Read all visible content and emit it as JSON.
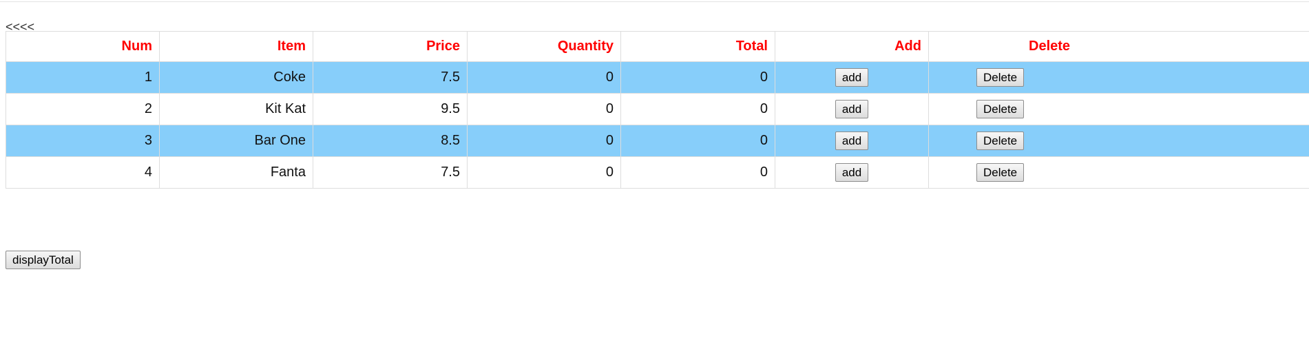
{
  "nav": {
    "back_label": "<<<<"
  },
  "table": {
    "headers": [
      "Num",
      "Item",
      "Price",
      "Quantity",
      "Total",
      "Add",
      "Delete"
    ],
    "rows": [
      {
        "num": "1",
        "item": "Coke",
        "price": "7.5",
        "quantity": "0",
        "total": "0",
        "add_label": "add",
        "delete_label": "Delete"
      },
      {
        "num": "2",
        "item": "Kit Kat",
        "price": "9.5",
        "quantity": "0",
        "total": "0",
        "add_label": "add",
        "delete_label": "Delete"
      },
      {
        "num": "3",
        "item": "Bar One",
        "price": "8.5",
        "quantity": "0",
        "total": "0",
        "add_label": "add",
        "delete_label": "Delete"
      },
      {
        "num": "4",
        "item": "Fanta",
        "price": "7.5",
        "quantity": "0",
        "total": "0",
        "add_label": "add",
        "delete_label": "Delete"
      }
    ]
  },
  "footer": {
    "display_total_label": "displayTotal"
  },
  "colors": {
    "header_text": "#ff0000",
    "stripe_row": "#87cefa",
    "border": "#dddddd"
  }
}
